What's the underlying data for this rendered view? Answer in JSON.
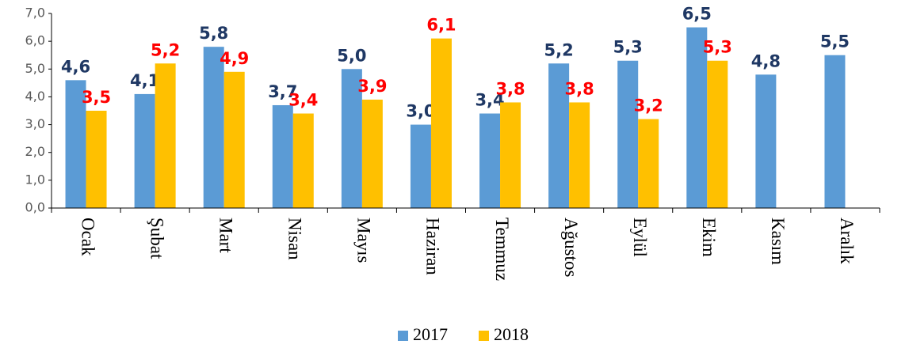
{
  "chart_data": {
    "type": "bar",
    "categories": [
      "Ocak",
      "Şubat",
      "Mart",
      "Nisan",
      "Mayıs",
      "Haziran",
      "Temmuz",
      "Ağustos",
      "Eylül",
      "Ekim",
      "Kasım",
      "Aralık"
    ],
    "series": [
      {
        "name": "2017",
        "color": "#5b9bd5",
        "label_color": "#1f3864",
        "values": [
          4.6,
          4.1,
          5.8,
          3.7,
          5.0,
          3.0,
          3.4,
          5.2,
          5.3,
          6.5,
          4.8,
          5.5
        ],
        "value_labels": [
          "4,6",
          "4,1",
          "5,8",
          "3,7",
          "5,0",
          "3,0",
          "3,4",
          "5,2",
          "5,3",
          "6,5",
          "4,8",
          "5,5"
        ]
      },
      {
        "name": "2018",
        "color": "#ffc000",
        "label_color": "#ff0000",
        "values": [
          3.5,
          5.2,
          4.9,
          3.4,
          3.9,
          6.1,
          3.8,
          3.8,
          3.2,
          5.3,
          null,
          null
        ],
        "value_labels": [
          "3,5",
          "5,2",
          "4,9",
          "3,4",
          "3,9",
          "6,1",
          "3,8",
          "3,8",
          "3,2",
          "5,3",
          null,
          null
        ]
      }
    ],
    "ylim": [
      0,
      7
    ],
    "yticks": [
      {
        "value": 0,
        "label": "0,0"
      },
      {
        "value": 1,
        "label": "1,0"
      },
      {
        "value": 2,
        "label": "2,0"
      },
      {
        "value": 3,
        "label": "3,0"
      },
      {
        "value": 4,
        "label": "4,0"
      },
      {
        "value": 5,
        "label": "5,0"
      },
      {
        "value": 6,
        "label": "6,0"
      },
      {
        "value": 7,
        "label": "7,0"
      }
    ],
    "grid": false,
    "legend": "bottom"
  }
}
